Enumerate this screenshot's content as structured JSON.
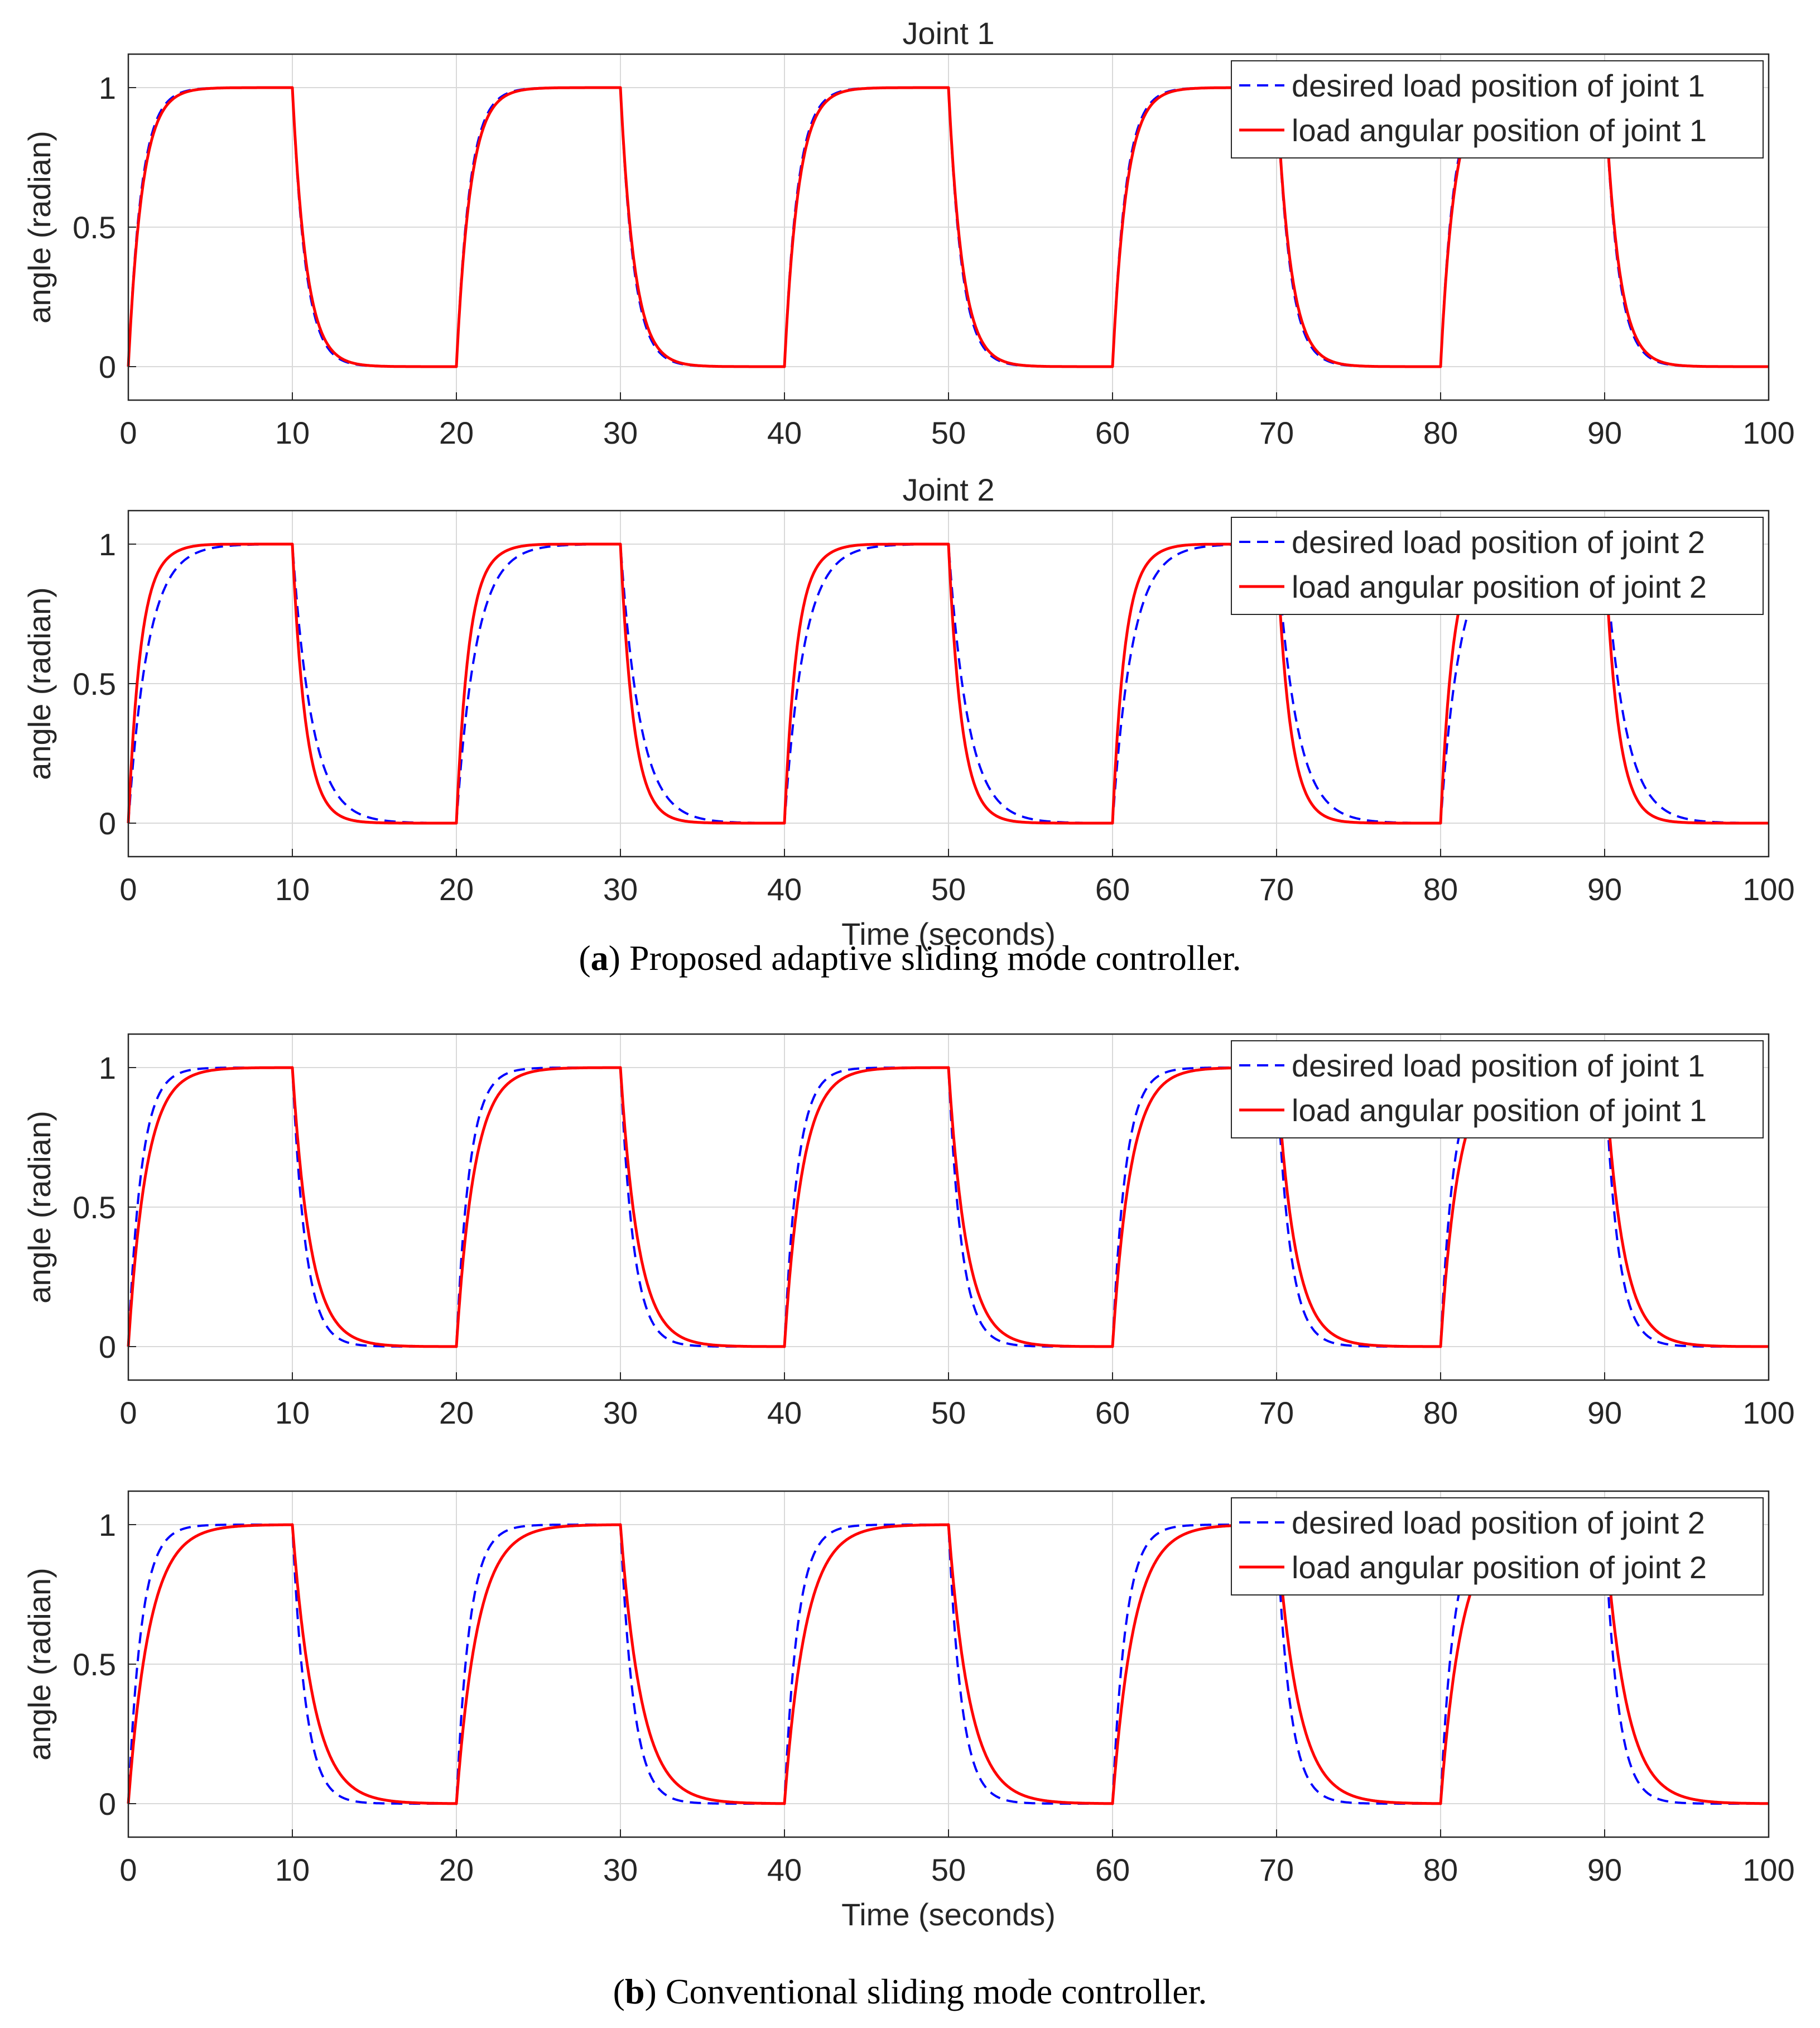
{
  "figure": {
    "caption_a": {
      "letter": "a",
      "text": "Proposed adaptive sliding mode controller."
    },
    "caption_b": {
      "letter": "b",
      "text": "Conventional sliding mode controller."
    }
  },
  "colors": {
    "desired": "#0000ff",
    "actual": "#ff0000",
    "grid": "#d9d9d9",
    "axis": "#262626"
  },
  "chart_data": [
    {
      "type": "line",
      "title": "Joint 1",
      "xlabel": "",
      "ylabel": "angle (radian)",
      "xlim": [
        0,
        100
      ],
      "ylim": [
        -0.12,
        1.12
      ],
      "xticks": [
        "0",
        "10",
        "20",
        "30",
        "40",
        "50",
        "60",
        "70",
        "80",
        "90",
        "100"
      ],
      "yticks": [
        "0",
        "0.5",
        "1"
      ],
      "grid": true,
      "legend_position": "top-right",
      "input": "square wave, period 20 s: 1 for 0-10 s, 0 for 10-20 s",
      "series": [
        {
          "name": "desired load position of joint 1",
          "style": "dashed",
          "color": "#0000ff",
          "time_constant_s": 0.8,
          "overshoot": 0
        },
        {
          "name": "load angular position of joint 1",
          "style": "solid",
          "color": "#ff0000",
          "time_constant_s": 0.85,
          "overshoot": 0
        }
      ]
    },
    {
      "type": "line",
      "title": "Joint 2",
      "xlabel": "Time (seconds)",
      "ylabel": "angle (radian)",
      "xlim": [
        0,
        100
      ],
      "ylim": [
        -0.12,
        1.12
      ],
      "xticks": [
        "0",
        "10",
        "20",
        "30",
        "40",
        "50",
        "60",
        "70",
        "80",
        "90",
        "100"
      ],
      "yticks": [
        "0",
        "0.5",
        "1"
      ],
      "grid": true,
      "legend_position": "top-right",
      "input": "square wave, period 20 s: 1 for 0-10 s, 0 for 10-20 s",
      "series": [
        {
          "name": "desired load position of joint 2",
          "style": "dashed",
          "color": "#0000ff",
          "time_constant_s": 1.2,
          "overshoot": 0
        },
        {
          "name": "load angular position of joint 2",
          "style": "solid",
          "color": "#ff0000",
          "time_constant_s": 0.8,
          "overshoot": 0.03
        }
      ]
    },
    {
      "type": "line",
      "title": "",
      "xlabel": "",
      "ylabel": "angle (radian)",
      "xlim": [
        0,
        100
      ],
      "ylim": [
        -0.12,
        1.12
      ],
      "xticks": [
        "0",
        "10",
        "20",
        "30",
        "40",
        "50",
        "60",
        "70",
        "80",
        "90",
        "100"
      ],
      "yticks": [
        "0",
        "0.5",
        "1"
      ],
      "grid": true,
      "legend_position": "top-right",
      "input": "square wave, period 20 s: 1 for 0-10 s, 0 for 10-20 s",
      "series": [
        {
          "name": "desired load position of joint 1",
          "style": "dashed",
          "color": "#0000ff",
          "time_constant_s": 0.8,
          "overshoot": 0
        },
        {
          "name": "load angular position of joint 1",
          "style": "solid",
          "color": "#ff0000",
          "time_constant_s": 1.1,
          "overshoot": 0
        }
      ]
    },
    {
      "type": "line",
      "title": "",
      "xlabel": "Time (seconds)",
      "ylabel": "angle (radian)",
      "xlim": [
        0,
        100
      ],
      "ylim": [
        -0.12,
        1.12
      ],
      "xticks": [
        "0",
        "10",
        "20",
        "30",
        "40",
        "50",
        "60",
        "70",
        "80",
        "90",
        "100"
      ],
      "yticks": [
        "0",
        "0.5",
        "1"
      ],
      "grid": true,
      "legend_position": "top-right",
      "input": "square wave, period 20 s: 1 for 0-10 s, 0 for 10-20 s",
      "series": [
        {
          "name": "desired load position of joint 2",
          "style": "dashed",
          "color": "#0000ff",
          "time_constant_s": 0.8,
          "overshoot": 0
        },
        {
          "name": "load angular position of joint 2",
          "style": "solid",
          "color": "#ff0000",
          "time_constant_s": 1.3,
          "overshoot": 0
        }
      ]
    }
  ]
}
